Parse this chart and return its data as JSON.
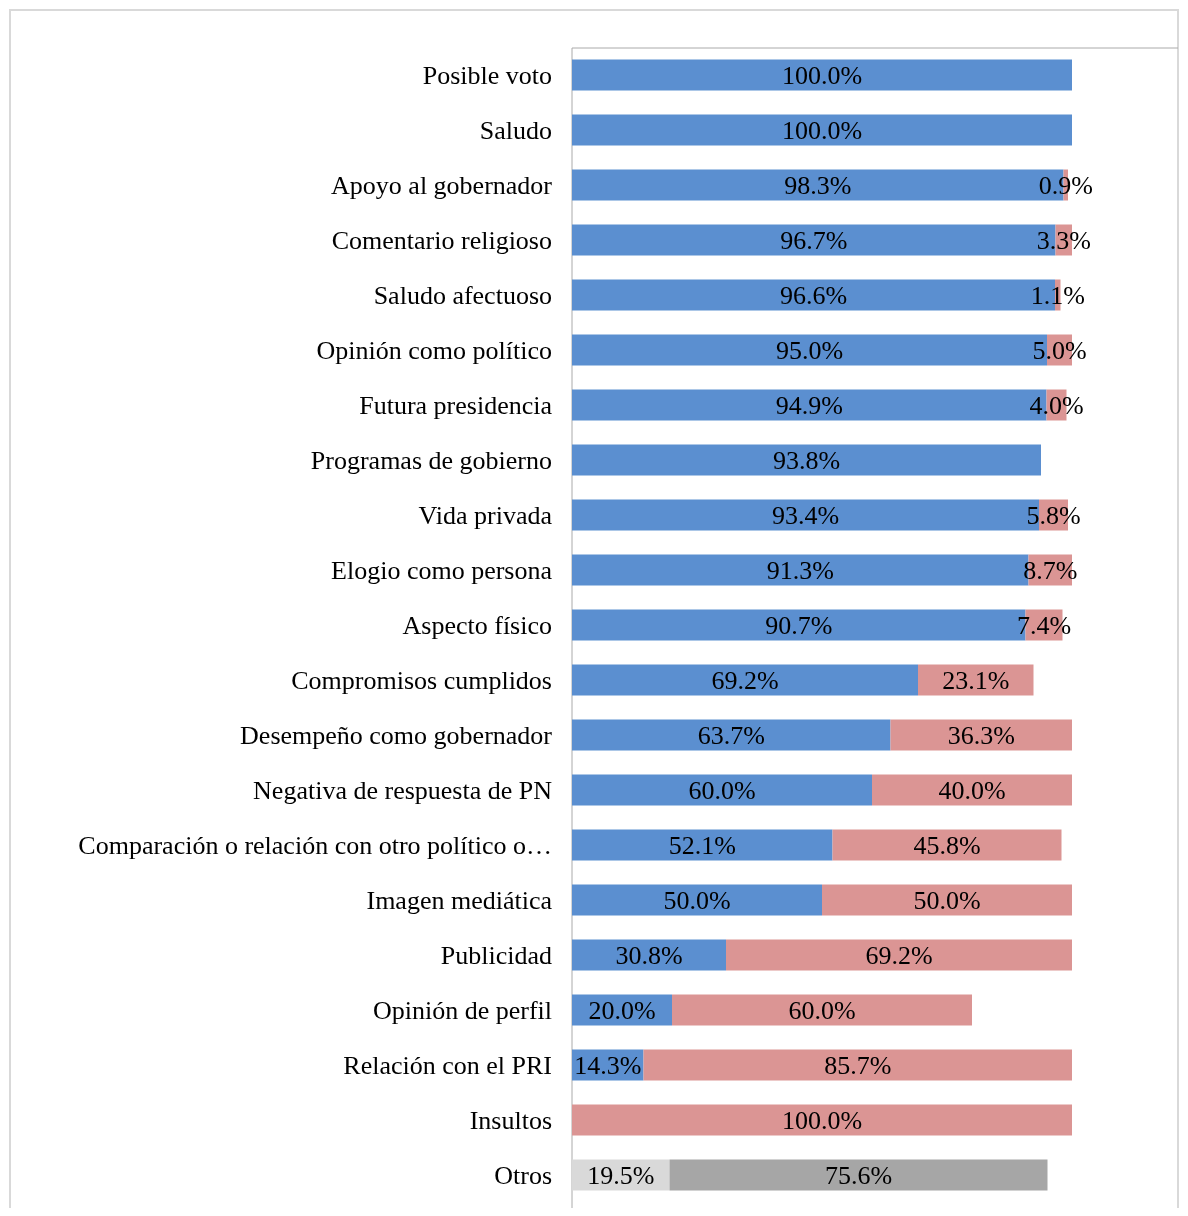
{
  "chart_data": {
    "type": "bar",
    "orientation": "horizontal",
    "stacked": true,
    "categories": [
      "Posible voto",
      "Saludo",
      "Apoyo al gobernador",
      "Comentario religioso",
      "Saludo afectuoso",
      "Opinión como político",
      "Futura presidencia",
      "Programas de gobierno",
      "Vida privada",
      "Elogio como persona",
      "Aspecto físico",
      "Compromisos cumplidos",
      "Desempeño como gobernador",
      "Negativa de respuesta de PN",
      "Comparación o relación con otro político o…",
      "Imagen mediática",
      "Publicidad",
      "Opinión de perfil",
      "Relación con el PRI",
      "Insultos",
      "Otros"
    ],
    "series": [
      {
        "colors": [
          "#5b8fd0",
          "#5b8fd0",
          "#5b8fd0",
          "#5b8fd0",
          "#5b8fd0",
          "#5b8fd0",
          "#5b8fd0",
          "#5b8fd0",
          "#5b8fd0",
          "#5b8fd0",
          "#5b8fd0",
          "#5b8fd0",
          "#5b8fd0",
          "#5b8fd0",
          "#5b8fd0",
          "#5b8fd0",
          "#5b8fd0",
          "#5b8fd0",
          "#5b8fd0",
          null,
          "#d9d9d9"
        ],
        "values": [
          100.0,
          100.0,
          98.3,
          96.7,
          96.6,
          95.0,
          94.9,
          93.8,
          93.4,
          91.3,
          90.7,
          69.2,
          63.7,
          60.0,
          52.1,
          50.0,
          30.8,
          20.0,
          14.3,
          null,
          19.5
        ],
        "value_labels": [
          "100.0%",
          "100.0%",
          "98.3%",
          "96.7%",
          "96.6%",
          "95.0%",
          "94.9%",
          "93.8%",
          "93.4%",
          "91.3%",
          "90.7%",
          "69.2%",
          "63.7%",
          "60.0%",
          "52.1%",
          "50.0%",
          "30.8%",
          "20.0%",
          "14.3%",
          null,
          "19.5%"
        ]
      },
      {
        "colors": [
          null,
          null,
          "#db9594",
          "#db9594",
          "#db9594",
          "#db9594",
          "#db9594",
          null,
          "#db9594",
          "#db9594",
          "#db9594",
          "#db9594",
          "#db9594",
          "#db9594",
          "#db9594",
          "#db9594",
          "#db9594",
          "#db9594",
          "#db9594",
          "#db9594",
          "#a6a6a6"
        ],
        "values": [
          null,
          null,
          0.9,
          3.3,
          1.1,
          5.0,
          4.0,
          null,
          5.8,
          8.7,
          7.4,
          23.1,
          36.3,
          40.0,
          45.8,
          50.0,
          69.2,
          60.0,
          85.7,
          100.0,
          75.6
        ],
        "value_labels": [
          null,
          null,
          "0.9%",
          "3.3%",
          "1.1%",
          "5.0%",
          "4.0%",
          null,
          "5.8%",
          "8.7%",
          "7.4%",
          "23.1%",
          "36.3%",
          "40.0%",
          "45.8%",
          "50.0%",
          "69.2%",
          "60.0%",
          "85.7%",
          "100.0%",
          "75.6%"
        ]
      }
    ]
  }
}
